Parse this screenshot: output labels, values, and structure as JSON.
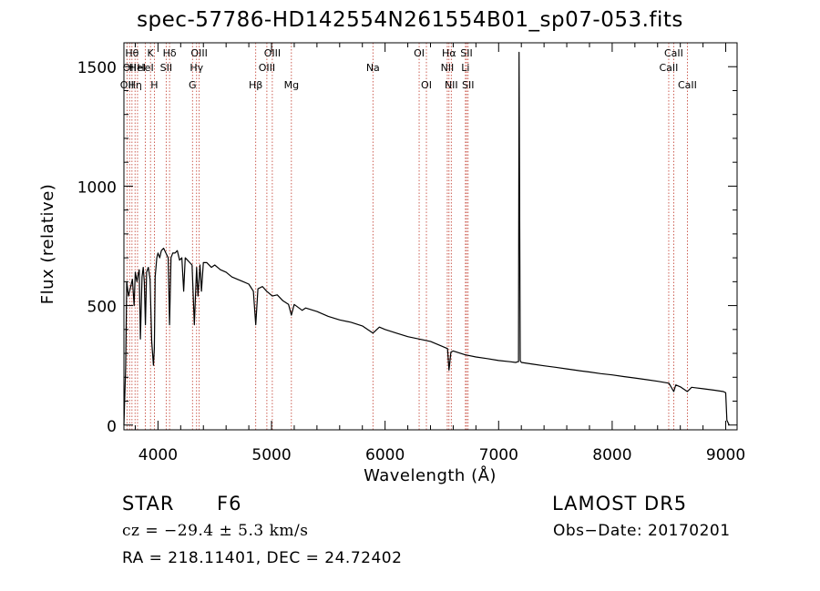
{
  "chart_data": {
    "type": "line",
    "title": "spec-57786-HD142554N261554B01_sp07-053.fits",
    "xlabel": "Wavelength (Å)",
    "ylabel": "Flux (relative)",
    "xlim": [
      3700,
      9100
    ],
    "ylim": [
      -20,
      1600
    ],
    "xticks": [
      4000,
      5000,
      6000,
      7000,
      8000,
      9000
    ],
    "xtick_labels": [
      "4000",
      "5000",
      "6000",
      "7000",
      "8000",
      "9000"
    ],
    "yticks": [
      0,
      500,
      1000,
      1500
    ],
    "ytick_labels": [
      "0",
      "500",
      "1000",
      "1500"
    ],
    "grid": false,
    "series": [
      {
        "x": [
          3700,
          3715,
          3725,
          3740,
          3760,
          3775,
          3790,
          3800,
          3815,
          3825,
          3835,
          3845,
          3860,
          3870,
          3880,
          3889,
          3900,
          3915,
          3930,
          3945,
          3960,
          3968,
          3975,
          3990,
          4000,
          4015,
          4030,
          4050,
          4070,
          4090,
          4102,
          4115,
          4130,
          4150,
          4170,
          4190,
          4210,
          4226,
          4240,
          4260,
          4280,
          4300,
          4320,
          4340,
          4352,
          4370,
          4383,
          4400,
          4430,
          4470,
          4500,
          4550,
          4600,
          4650,
          4700,
          4750,
          4800,
          4840,
          4861,
          4880,
          4920,
          4957,
          5007,
          5050,
          5100,
          5150,
          5175,
          5200,
          5270,
          5300,
          5400,
          5500,
          5600,
          5700,
          5800,
          5893,
          5950,
          6000,
          6100,
          6200,
          6300,
          6400,
          6500,
          6550,
          6563,
          6580,
          6600,
          6700,
          6800,
          6900,
          7000,
          7100,
          7150,
          7170,
          7175,
          7180,
          7190,
          7200,
          7300,
          7400,
          7500,
          7600,
          7700,
          7800,
          7900,
          8000,
          8100,
          8200,
          8300,
          8400,
          8500,
          8542,
          8560,
          8600,
          8662,
          8700,
          8800,
          8900,
          8980,
          9000,
          9010,
          9030
        ],
        "y": [
          0,
          240,
          600,
          540,
          580,
          610,
          500,
          640,
          600,
          630,
          650,
          360,
          620,
          660,
          600,
          420,
          640,
          660,
          610,
          350,
          250,
          320,
          620,
          700,
          720,
          700,
          730,
          740,
          720,
          700,
          420,
          700,
          720,
          720,
          730,
          690,
          700,
          560,
          700,
          690,
          680,
          670,
          420,
          660,
          540,
          670,
          560,
          680,
          680,
          660,
          670,
          650,
          640,
          620,
          610,
          600,
          590,
          560,
          420,
          570,
          580,
          560,
          540,
          545,
          520,
          505,
          460,
          505,
          480,
          490,
          475,
          455,
          440,
          430,
          415,
          385,
          410,
          400,
          385,
          370,
          360,
          350,
          330,
          320,
          230,
          305,
          310,
          295,
          285,
          278,
          270,
          265,
          262,
          265,
          265,
          1560,
          270,
          262,
          255,
          248,
          242,
          235,
          228,
          222,
          215,
          210,
          203,
          197,
          190,
          183,
          175,
          140,
          168,
          160,
          140,
          158,
          152,
          146,
          140,
          135,
          20,
          0
        ]
      }
    ],
    "lines": [
      {
        "x": 3727,
        "label": "OII",
        "row": 3
      },
      {
        "x": 3750,
        "label": "OII",
        "row": 2
      },
      {
        "x": 3771,
        "label": "Hθ",
        "row": 1
      },
      {
        "x": 3798,
        "label": "Hη",
        "row": 3
      },
      {
        "x": 3820,
        "label": "HeI",
        "row": 2
      },
      {
        "x": 3889,
        "label": "HeI",
        "row": 2
      },
      {
        "x": 3934,
        "label": "K",
        "row": 1
      },
      {
        "x": 3968,
        "label": "H",
        "row": 3
      },
      {
        "x": 4072,
        "label": "SII",
        "row": 2
      },
      {
        "x": 4102,
        "label": "Hδ",
        "row": 1
      },
      {
        "x": 4304,
        "label": "G",
        "row": 3
      },
      {
        "x": 4340,
        "label": "Hγ",
        "row": 2
      },
      {
        "x": 4363,
        "label": "OIII",
        "row": 1
      },
      {
        "x": 4861,
        "label": "Hβ",
        "row": 3
      },
      {
        "x": 4959,
        "label": "OIII",
        "row": 2
      },
      {
        "x": 5007,
        "label": "OIII",
        "row": 1
      },
      {
        "x": 5175,
        "label": "Mg",
        "row": 3
      },
      {
        "x": 5893,
        "label": "Na",
        "row": 2
      },
      {
        "x": 6300,
        "label": "OI",
        "row": 1
      },
      {
        "x": 6364,
        "label": "OI",
        "row": 3
      },
      {
        "x": 6548,
        "label": "NII",
        "row": 2
      },
      {
        "x": 6563,
        "label": "Hα",
        "row": 1
      },
      {
        "x": 6583,
        "label": "NII",
        "row": 3
      },
      {
        "x": 6708,
        "label": "Li",
        "row": 2
      },
      {
        "x": 6717,
        "label": "SII",
        "row": 1
      },
      {
        "x": 6731,
        "label": "SII",
        "row": 3
      },
      {
        "x": 8498,
        "label": "CaII",
        "row": 2
      },
      {
        "x": 8542,
        "label": "CaII",
        "row": 1
      },
      {
        "x": 8662,
        "label": "CaII",
        "row": 3
      }
    ]
  },
  "info": {
    "object_class": "STAR",
    "subclass": "F6",
    "survey": "LAMOST  DR5",
    "velocity": "cz = −29.4 ± 5.3 km/s",
    "obs_date": "Obs−Date: 20170201",
    "coords": "RA = 218.11401, DEC =  24.72402"
  }
}
